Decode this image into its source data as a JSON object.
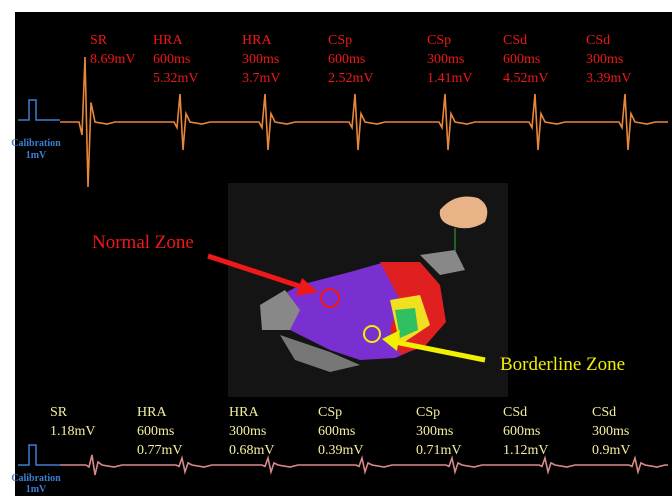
{
  "top_labels": [
    [
      "SR",
      "8.69mV"
    ],
    [
      "HRA",
      "600ms",
      "5.32mV"
    ],
    [
      "HRA",
      "300ms",
      "3.7mV"
    ],
    [
      "CSp",
      "600ms",
      "2.52mV"
    ],
    [
      "CSp",
      "300ms",
      "1.41mV"
    ],
    [
      "CSd",
      "600ms",
      "4.52mV"
    ],
    [
      "CSd",
      "300ms",
      "3.39mV"
    ]
  ],
  "bottom_labels": [
    [
      "SR",
      "1.18mV"
    ],
    [
      "HRA",
      "600ms",
      "0.77mV"
    ],
    [
      "HRA",
      "300ms",
      "0.68mV"
    ],
    [
      "CSp",
      "600ms",
      "0.39mV"
    ],
    [
      "CSp",
      "300ms",
      "0.71mV"
    ],
    [
      "CSd",
      "600ms",
      "1.12mV"
    ],
    [
      "CSd",
      "300ms",
      "0.9mV"
    ]
  ],
  "calibration": {
    "label": "Calibration",
    "value": "1mV"
  },
  "annotations": {
    "normal": "Normal Zone",
    "borderline": "Borderline Zone"
  }
}
